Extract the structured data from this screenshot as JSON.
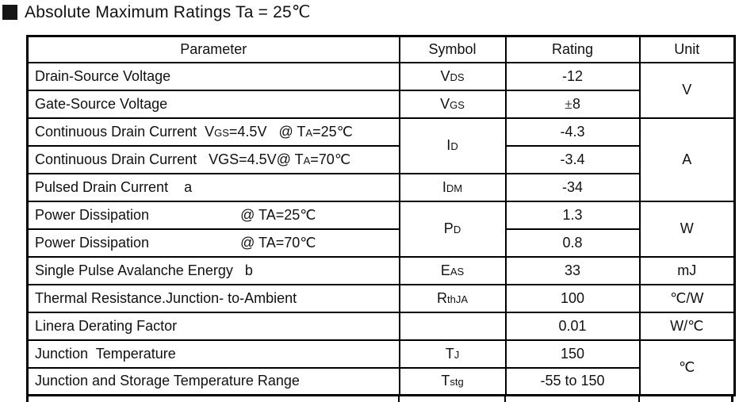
{
  "title": "Absolute Maximum Ratings Ta = 25℃",
  "table": {
    "headers": [
      "Parameter",
      "Symbol",
      "Rating",
      "Unit"
    ],
    "rows": [
      {
        "param": "Drain-Source Voltage",
        "symbol": "V~DS~",
        "rating": "-12",
        "unit": "V",
        "unit_rowspan": 2
      },
      {
        "param": "Gate-Source Voltage",
        "symbol": "V~GS~",
        "rating": "±8"
      },
      {
        "param": "Continuous Drain Current  V~GS~=4.5V   @ T~A~=25℃",
        "symbol": "I~D~",
        "symbol_rowspan": 2,
        "rating": "-4.3",
        "unit": "A",
        "unit_rowspan": 3
      },
      {
        "param": "Continuous Drain Current   VGS=4.5V@ T~A~=70℃",
        "rating": "-3.4"
      },
      {
        "param": "Pulsed Drain Current    a",
        "symbol": "I~DM~",
        "rating": "-34"
      },
      {
        "param": "Power Dissipation                       @ TA=25℃",
        "symbol": "P~D~",
        "symbol_rowspan": 2,
        "rating": "1.3",
        "unit": "W",
        "unit_rowspan": 2
      },
      {
        "param": "Power Dissipation                       @ TA=70℃",
        "rating": "0.8"
      },
      {
        "param": "Single Pulse Avalanche Energy   b",
        "symbol": "E~AS~",
        "rating": "33",
        "unit": "mJ"
      },
      {
        "param": "Thermal Resistance.Junction- to-Ambient",
        "symbol": "R~thJA~",
        "rating": "100",
        "unit": "℃/W"
      },
      {
        "param": "Linera Derating Factor",
        "symbol": "",
        "rating": "0.01",
        "unit": "W/℃"
      },
      {
        "param": "Junction  Temperature",
        "symbol": "T~J~",
        "rating": "150",
        "unit": "℃",
        "unit_rowspan": 2
      },
      {
        "param": "Junction and Storage Temperature Range",
        "symbol": "T~stg~",
        "rating": "-55 to 150"
      }
    ]
  },
  "colors": {
    "text": "#111111",
    "border": "#000000",
    "background": "#ffffff"
  }
}
